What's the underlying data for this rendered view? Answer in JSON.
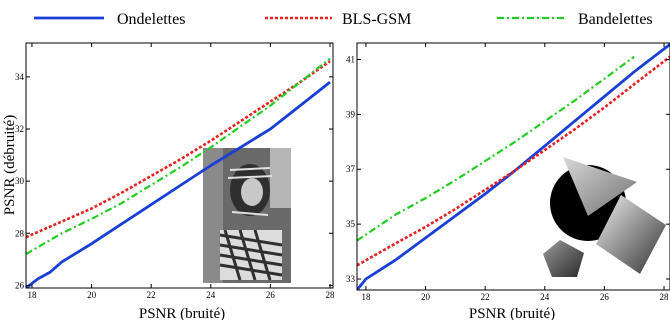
{
  "legend": [
    {
      "name": "Ondelettes",
      "color": "#1a3fd6",
      "dash": "solid"
    },
    {
      "name": "BLS-GSM",
      "color": "#e82020",
      "dash": "dotted"
    },
    {
      "name": "Bandelettes",
      "color": "#22cc22",
      "dash": "dashdot"
    }
  ],
  "chart_data": [
    {
      "type": "line",
      "xlabel": "PSNR (bruité)",
      "ylabel": "PSNR (débruité)",
      "xlim": [
        17.8,
        28.1
      ],
      "ylim": [
        25.9,
        35.3
      ],
      "xticks": [
        "18",
        "20",
        "22",
        "24",
        "26",
        "28"
      ],
      "yticks": [
        "26",
        "28",
        "30",
        "32",
        "34"
      ],
      "inset": "photo-barbara",
      "series": [
        {
          "name": "Ondelettes",
          "x": [
            17.8,
            18.2,
            18.6,
            19,
            19.5,
            20,
            21,
            22,
            23,
            24,
            25,
            26,
            27,
            28
          ],
          "y": [
            25.9,
            26.25,
            26.5,
            26.9,
            27.25,
            27.6,
            28.35,
            29.1,
            29.85,
            30.6,
            31.3,
            32.0,
            32.9,
            33.8
          ]
        },
        {
          "name": "BLS-GSM",
          "x": [
            17.8,
            19,
            20,
            21,
            22,
            23,
            24,
            25,
            26,
            27,
            28
          ],
          "y": [
            27.85,
            28.45,
            28.95,
            29.55,
            30.2,
            30.85,
            31.55,
            32.3,
            33.05,
            33.8,
            34.6
          ]
        },
        {
          "name": "Bandelettes",
          "x": [
            17.8,
            19,
            20,
            21,
            22,
            23,
            24,
            25,
            26,
            27,
            28
          ],
          "y": [
            27.2,
            28.0,
            28.55,
            29.15,
            29.85,
            30.55,
            31.3,
            32.1,
            32.9,
            33.8,
            34.7
          ]
        }
      ]
    },
    {
      "type": "line",
      "xlabel": "PSNR (bruité)",
      "ylabel": "",
      "xlim": [
        17.7,
        28.2
      ],
      "ylim": [
        32.6,
        41.6
      ],
      "xticks": [
        "18",
        "20",
        "22",
        "24",
        "26",
        "28"
      ],
      "yticks": [
        "33",
        "35",
        "37",
        "39",
        "41"
      ],
      "inset": "geometric-shapes",
      "series": [
        {
          "name": "Ondelettes",
          "x": [
            17.7,
            18,
            19,
            20,
            21,
            22,
            23,
            24,
            25,
            26,
            27,
            28.2
          ],
          "y": [
            32.6,
            33.0,
            33.7,
            34.5,
            35.3,
            36.1,
            36.95,
            37.85,
            38.75,
            39.65,
            40.55,
            41.55
          ]
        },
        {
          "name": "BLS-GSM",
          "x": [
            17.7,
            19,
            20,
            21,
            22,
            23,
            24,
            25,
            26,
            27,
            28.2
          ],
          "y": [
            33.5,
            34.3,
            34.9,
            35.55,
            36.25,
            36.95,
            37.7,
            38.45,
            39.25,
            40.1,
            41.1
          ]
        },
        {
          "name": "Bandelettes",
          "x": [
            17.7,
            19,
            20,
            21,
            22,
            23,
            24,
            25,
            26,
            27
          ],
          "y": [
            34.4,
            35.35,
            35.95,
            36.6,
            37.3,
            38.0,
            38.75,
            39.5,
            40.3,
            41.1
          ]
        }
      ]
    }
  ]
}
